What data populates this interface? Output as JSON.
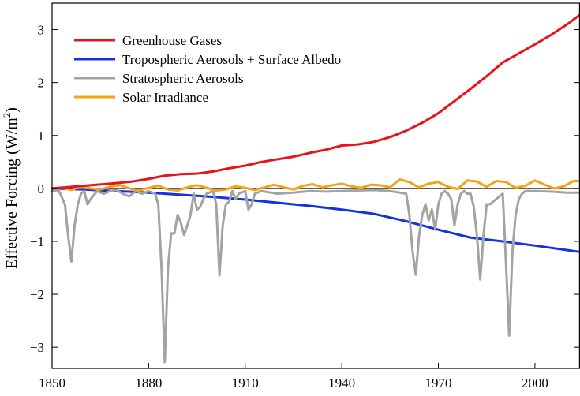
{
  "chart_data": {
    "type": "line",
    "title": "",
    "xlabel": "",
    "ylabel": {
      "prefix": "Effective Forcing (W/m",
      "superscript": "2",
      "suffix": ")"
    },
    "xlim": [
      1850,
      2014
    ],
    "ylim": [
      -3.4,
      3.5
    ],
    "x_ticks": [
      1850,
      1880,
      1910,
      1940,
      1970,
      2000
    ],
    "x_tick_labels": [
      "1850",
      "1880",
      "1910",
      "1940",
      "1970",
      "2000"
    ],
    "y_ticks": [
      -3,
      -2,
      -1,
      0,
      1,
      2,
      3
    ],
    "y_tick_labels": [
      "−3",
      "−2",
      "−1",
      "0",
      "1",
      "2",
      "3"
    ],
    "zero_line": true,
    "grid": false,
    "legend_position": "top-left",
    "series": [
      {
        "name": "Greenhouse Gases",
        "color": "#e8141b",
        "x": [
          1850,
          1860,
          1870,
          1875,
          1880,
          1885,
          1890,
          1895,
          1900,
          1905,
          1910,
          1915,
          1920,
          1925,
          1930,
          1935,
          1940,
          1945,
          1950,
          1955,
          1960,
          1965,
          1970,
          1975,
          1980,
          1985,
          1990,
          1995,
          2000,
          2005,
          2010,
          2014
        ],
        "values": [
          0.0,
          0.05,
          0.1,
          0.13,
          0.18,
          0.24,
          0.27,
          0.28,
          0.32,
          0.38,
          0.43,
          0.5,
          0.55,
          0.6,
          0.67,
          0.73,
          0.81,
          0.83,
          0.88,
          0.97,
          1.09,
          1.24,
          1.42,
          1.65,
          1.88,
          2.12,
          2.38,
          2.55,
          2.72,
          2.9,
          3.1,
          3.28
        ]
      },
      {
        "name": "Tropospheric Aerosols + Surface Albedo",
        "color": "#1432e0",
        "x": [
          1850,
          1860,
          1870,
          1880,
          1890,
          1900,
          1910,
          1920,
          1930,
          1940,
          1950,
          1960,
          1970,
          1980,
          1990,
          2000,
          2014
        ],
        "values": [
          0.0,
          -0.02,
          -0.05,
          -0.08,
          -0.12,
          -0.16,
          -0.21,
          -0.27,
          -0.33,
          -0.4,
          -0.48,
          -0.62,
          -0.78,
          -0.93,
          -1.0,
          -1.08,
          -1.2
        ]
      },
      {
        "name": "Stratospheric Aerosols",
        "color": "#a3a3a3",
        "x": [
          1850,
          1852,
          1854,
          1855,
          1856,
          1857,
          1858,
          1859,
          1860,
          1861,
          1862,
          1864,
          1866,
          1868,
          1870,
          1872,
          1874,
          1876,
          1878,
          1880,
          1882,
          1883,
          1884,
          1885,
          1886,
          1887,
          1888,
          1889,
          1890,
          1891,
          1892,
          1893,
          1894,
          1895,
          1896,
          1897,
          1898,
          1900,
          1901,
          1902,
          1903,
          1904,
          1905,
          1906,
          1907,
          1908,
          1910,
          1911,
          1912,
          1913,
          1915,
          1920,
          1925,
          1930,
          1935,
          1940,
          1945,
          1950,
          1955,
          1960,
          1961,
          1962,
          1963,
          1964,
          1965,
          1966,
          1967,
          1968,
          1969,
          1970,
          1971,
          1972,
          1973,
          1974,
          1975,
          1976,
          1977,
          1978,
          1979,
          1980,
          1981,
          1982,
          1983,
          1984,
          1985,
          1986,
          1987,
          1988,
          1989,
          1990,
          1991,
          1992,
          1993,
          1994,
          1995,
          1996,
          1997,
          2000,
          2005,
          2010,
          2014
        ],
        "values": [
          -0.05,
          -0.03,
          -0.3,
          -0.9,
          -1.38,
          -0.7,
          -0.3,
          -0.1,
          -0.05,
          -0.3,
          -0.2,
          -0.05,
          -0.1,
          -0.05,
          -0.03,
          -0.1,
          -0.15,
          -0.05,
          -0.1,
          -0.05,
          -0.1,
          -0.3,
          -1.5,
          -3.28,
          -1.5,
          -0.85,
          -0.85,
          -0.5,
          -0.65,
          -0.88,
          -0.7,
          -0.5,
          -0.1,
          -0.4,
          -0.35,
          -0.2,
          -0.1,
          -0.05,
          -0.3,
          -1.64,
          -0.7,
          -0.3,
          -0.25,
          -0.05,
          -0.2,
          -0.1,
          -0.05,
          -0.4,
          -0.3,
          -0.1,
          -0.05,
          -0.1,
          -0.08,
          -0.05,
          -0.06,
          -0.05,
          -0.04,
          -0.03,
          -0.05,
          -0.1,
          -0.5,
          -1.2,
          -1.63,
          -0.9,
          -0.5,
          -0.3,
          -0.6,
          -0.4,
          -0.78,
          -0.3,
          -0.1,
          -0.05,
          -0.1,
          -0.2,
          -0.7,
          -0.3,
          -0.1,
          -0.05,
          -0.1,
          -0.1,
          -0.35,
          -0.9,
          -1.72,
          -0.9,
          -0.3,
          -0.3,
          -0.25,
          -0.2,
          -0.15,
          -0.1,
          -1.4,
          -2.78,
          -1.2,
          -0.5,
          -0.2,
          -0.1,
          -0.05,
          -0.05,
          -0.06,
          -0.08,
          -0.08
        ]
      },
      {
        "name": "Solar Irradiance",
        "color": "#f5a214",
        "x": [
          1850,
          1853,
          1856,
          1859,
          1862,
          1865,
          1868,
          1871,
          1874,
          1877,
          1880,
          1883,
          1886,
          1889,
          1892,
          1895,
          1898,
          1901,
          1904,
          1907,
          1910,
          1913,
          1916,
          1919,
          1922,
          1925,
          1928,
          1931,
          1934,
          1937,
          1940,
          1943,
          1946,
          1949,
          1952,
          1955,
          1958,
          1961,
          1964,
          1967,
          1970,
          1973,
          1976,
          1979,
          1982,
          1985,
          1988,
          1991,
          1994,
          1997,
          2000,
          2003,
          2006,
          2009,
          2012,
          2014
        ],
        "values": [
          0.0,
          0.01,
          -0.03,
          0.04,
          0.0,
          -0.02,
          0.03,
          0.06,
          0.0,
          -0.04,
          0.01,
          0.05,
          -0.02,
          -0.04,
          0.02,
          0.06,
          0.01,
          -0.04,
          -0.02,
          0.04,
          0.01,
          -0.03,
          0.02,
          0.07,
          0.02,
          -0.02,
          0.05,
          0.08,
          0.02,
          0.06,
          0.09,
          0.04,
          0.01,
          0.07,
          0.06,
          0.02,
          0.17,
          0.12,
          0.02,
          0.09,
          0.12,
          0.03,
          -0.01,
          0.15,
          0.13,
          0.03,
          0.14,
          0.12,
          0.01,
          0.05,
          0.15,
          0.07,
          0.0,
          0.04,
          0.14,
          0.14
        ]
      }
    ]
  }
}
